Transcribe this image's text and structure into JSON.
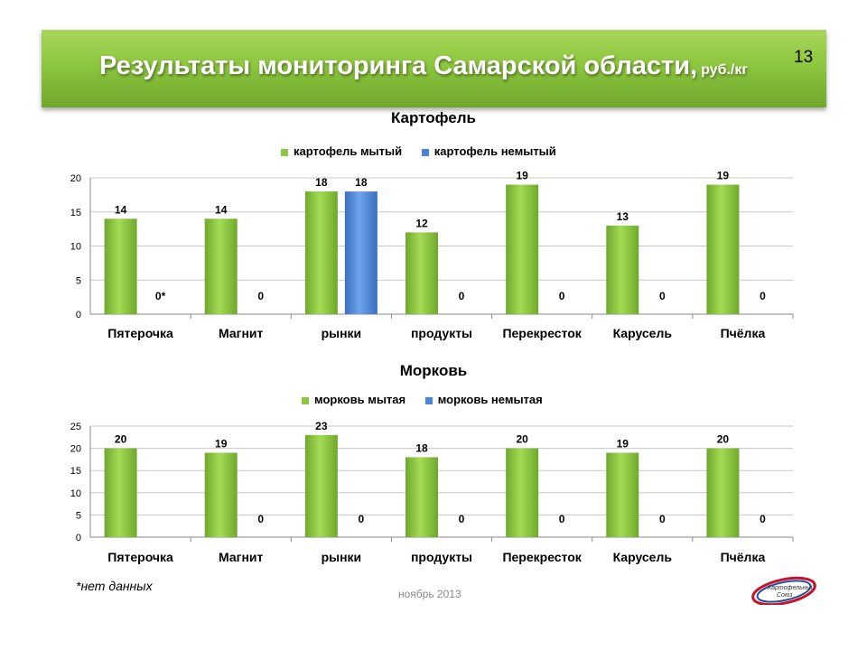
{
  "header": {
    "title": "Результаты мониторинга Самарской области,",
    "unit": "руб./кг",
    "slide_number": "13"
  },
  "footer": {
    "footnote": "*нет данных",
    "date": "ноябрь 2013",
    "logo_text": "Картофельный Союз"
  },
  "colors": {
    "green": "#8dc63f",
    "blue": "#4a86d8",
    "grid": "#c8c8c8"
  },
  "chart_data": [
    {
      "type": "bar",
      "title": "Картофель",
      "categories": [
        "Пятерочка",
        "Магнит",
        "рынки",
        "продукты",
        "Перекресток",
        "Карусель",
        "Пчёлка"
      ],
      "series": [
        {
          "name": "картофель мытый",
          "color": "#8dc63f",
          "values": [
            14,
            14,
            18,
            12,
            19,
            13,
            19
          ],
          "labels": [
            "14",
            "14",
            "18",
            "12",
            "19",
            "13",
            "19"
          ]
        },
        {
          "name": "картофель немытый",
          "color": "#4a86d8",
          "values": [
            0,
            0,
            18,
            0,
            0,
            0,
            0
          ],
          "labels": [
            "0*",
            "0",
            "18",
            "0",
            "0",
            "0",
            "0"
          ]
        }
      ],
      "ylim": [
        0,
        20
      ],
      "yticks": [
        0,
        5,
        10,
        15,
        20
      ],
      "grid": true,
      "legend": "top"
    },
    {
      "type": "bar",
      "title": "Морковь",
      "categories": [
        "Пятерочка",
        "Магнит",
        "рынки",
        "продукты",
        "Перекресток",
        "Карусель",
        "Пчёлка"
      ],
      "series": [
        {
          "name": "морковь мытая",
          "color": "#8dc63f",
          "values": [
            20,
            19,
            23,
            18,
            20,
            19,
            20
          ],
          "labels": [
            "20",
            "19",
            "23",
            "18",
            "20",
            "19",
            "20"
          ]
        },
        {
          "name": "морковь немытая",
          "color": "#4a86d8",
          "values": [
            0,
            0,
            0,
            0,
            0,
            0,
            0
          ],
          "labels": [
            "",
            "0",
            "0",
            "0",
            "0",
            "0",
            "0"
          ]
        }
      ],
      "ylim": [
        0,
        25
      ],
      "yticks": [
        0,
        5,
        10,
        15,
        20,
        25
      ],
      "grid": true,
      "legend": "top"
    }
  ]
}
